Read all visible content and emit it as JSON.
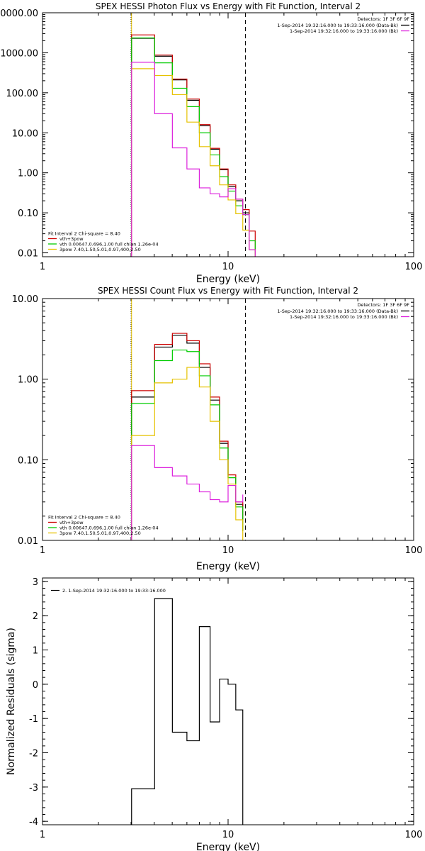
{
  "chart_data": [
    {
      "type": "line",
      "id": "photon",
      "title": "SPEX HESSI Photon Flux vs Energy with Fit Function, Interval 2",
      "xlabel": "Energy (keV)",
      "ylabel": "",
      "xscale": "log",
      "yscale": "log",
      "xlim": [
        1,
        100
      ],
      "ylim": [
        0.008,
        10000
      ],
      "x_ticks": [
        1,
        10,
        100
      ],
      "x_tick_labels": [
        "1",
        "10",
        "100"
      ],
      "y_ticks": [
        0.01,
        0.1,
        1,
        10,
        100,
        1000,
        10000
      ],
      "y_tick_labels": [
        "0.01",
        "0.10",
        "1.00",
        "10.00",
        "100.00",
        "1000.00",
        "10000.00"
      ],
      "vlines": [
        {
          "x": 3.0,
          "style": "dotted",
          "color": "#000000"
        },
        {
          "x": 3.02,
          "style": "solid",
          "color": "#e6c200"
        },
        {
          "x": 12.4,
          "style": "dashed",
          "color": "#000000"
        }
      ],
      "info_lines": [
        "Detectors: 1F 3F 6F 9F"
      ],
      "top_legend": [
        {
          "text": "1-Sep-2014 19:32:16.000 to 19:33:16.000 (Data-Bk)",
          "color": "#000000"
        },
        {
          "text": "1-Sep-2014 19:32:16.000 to 19:33:16.000 (Bk)",
          "color": "#dd22dd"
        }
      ],
      "fit_header": "Fit Interval 2   Chi-square = 8.40",
      "fit_legend": [
        {
          "text": "vth+3pow",
          "color": "#cc0000"
        },
        {
          "text": "vth 0.00647,0.696,1.00  full chian 1.26e-04",
          "color": "#00cc00"
        },
        {
          "text": "3pow 7.40,1.50,5.01,0.97,400,2.50",
          "color": "#e6c200"
        }
      ],
      "edges": [
        3.02,
        4.02,
        5.01,
        6.0,
        7.0,
        8.0,
        9.0,
        10.0,
        11.0,
        12.0,
        13.0,
        14.0
      ],
      "series": [
        {
          "name": "Data-Bk",
          "color": "#000000",
          "values": [
            2300,
            820,
            210,
            65,
            15,
            3.9,
            1.2,
            0.45,
            0.2,
            0.1,
            0.012
          ]
        },
        {
          "name": "vth+3pow",
          "color": "#cc0000",
          "values": [
            2800,
            880,
            220,
            70,
            16,
            4.1,
            1.25,
            0.5,
            0.22,
            0.12,
            0.035
          ]
        },
        {
          "name": "vth",
          "color": "#00cc00",
          "values": [
            2350,
            560,
            130,
            45,
            10,
            2.8,
            0.8,
            0.35,
            0.15,
            0.09,
            0.02
          ]
        },
        {
          "name": "3pow",
          "color": "#e6c200",
          "values": [
            400,
            270,
            90,
            18.5,
            4.5,
            1.5,
            0.5,
            0.21,
            0.095,
            0.037,
            0.012
          ]
        },
        {
          "name": "Bk",
          "color": "#dd22dd",
          "values": [
            580,
            30,
            4.2,
            1.25,
            0.42,
            0.3,
            0.25,
            0.4,
            0.22,
            0.09,
            0.012
          ]
        }
      ]
    },
    {
      "type": "line",
      "id": "count",
      "title": "SPEX HESSI Count Flux vs Energy with Fit Function, Interval 2",
      "xlabel": "Energy (keV)",
      "ylabel": "",
      "xscale": "log",
      "yscale": "log",
      "xlim": [
        1,
        100
      ],
      "ylim": [
        0.01,
        10
      ],
      "x_ticks": [
        1,
        10,
        100
      ],
      "x_tick_labels": [
        "1",
        "10",
        "100"
      ],
      "y_ticks": [
        0.01,
        0.1,
        1,
        10
      ],
      "y_tick_labels": [
        "0.01",
        "0.10",
        "1.00",
        "10.00"
      ],
      "vlines": [
        {
          "x": 3.0,
          "style": "dotted",
          "color": "#000000"
        },
        {
          "x": 3.02,
          "style": "solid",
          "color": "#e6c200"
        },
        {
          "x": 12.4,
          "style": "dashed",
          "color": "#000000"
        }
      ],
      "info_lines": [
        "Detectors: 1F 3F 6F 9F"
      ],
      "top_legend": [
        {
          "text": "1-Sep-2014 19:32:16.000 to 19:33:16.000 (Data-Bk)",
          "color": "#000000"
        },
        {
          "text": "1-Sep-2014 19:32:16.000 to 19:33:16.000 (Bk)",
          "color": "#dd22dd"
        }
      ],
      "fit_header": "Fit Interval 2   Chi-square = 8.40",
      "fit_legend": [
        {
          "text": "vth+3pow",
          "color": "#cc0000"
        },
        {
          "text": "vth 0.00647,0.696,1.00  full chian 1.26e-04",
          "color": "#00cc00"
        },
        {
          "text": "3pow 7.40,1.50,5.01,0.97,400,2.50",
          "color": "#e6c200"
        }
      ],
      "edges": [
        3.02,
        4.02,
        5.01,
        6.0,
        7.0,
        8.0,
        9.0,
        10.0,
        11.0,
        12.0
      ],
      "series": [
        {
          "name": "Data-Bk",
          "color": "#000000",
          "values": [
            0.6,
            2.5,
            3.5,
            2.8,
            1.4,
            0.55,
            0.16,
            0.06,
            0.028,
            0.013
          ]
        },
        {
          "name": "vth+3pow",
          "color": "#cc0000",
          "values": [
            0.72,
            2.7,
            3.7,
            3.0,
            1.55,
            0.6,
            0.17,
            0.065,
            0.03,
            0.018
          ]
        },
        {
          "name": "vth",
          "color": "#00cc00",
          "values": [
            0.5,
            1.7,
            2.3,
            2.2,
            1.1,
            0.48,
            0.14,
            0.06,
            0.026,
            0.013
          ]
        },
        {
          "name": "3pow",
          "color": "#e6c200",
          "values": [
            0.2,
            0.9,
            1.0,
            1.4,
            0.8,
            0.3,
            0.1,
            0.05,
            0.018,
            0.01
          ]
        },
        {
          "name": "Bk",
          "color": "#dd22dd",
          "values": [
            0.15,
            0.08,
            0.063,
            0.05,
            0.04,
            0.032,
            0.03,
            0.048,
            0.03,
            0.037
          ]
        }
      ]
    },
    {
      "type": "line",
      "id": "resid",
      "title": "",
      "xlabel": "Energy (keV)",
      "ylabel": "Normalized Residuals (sigma)",
      "xscale": "log",
      "yscale": "linear",
      "xlim": [
        1,
        100
      ],
      "ylim": [
        -4.1,
        3.1
      ],
      "x_ticks": [
        1,
        10,
        100
      ],
      "x_tick_labels": [
        "1",
        "10",
        "100"
      ],
      "y_ticks": [
        -4,
        -3,
        -2,
        -1,
        0,
        1,
        2,
        3
      ],
      "y_tick_labels": [
        "-4",
        "-3",
        "-2",
        "-1",
        "0",
        "1",
        "2",
        "3"
      ],
      "legend": [
        {
          "text": "2.  1-Sep-2014 19:32:16.000 to 19:33:16.000",
          "color": "#000000"
        }
      ],
      "edges": [
        3.02,
        4.02,
        5.01,
        6.0,
        7.0,
        8.0,
        9.0,
        10.0,
        11.0,
        12.0
      ],
      "series": [
        {
          "name": "",
          "color": "#000000",
          "values": [
            -3.05,
            2.5,
            -1.4,
            -1.65,
            1.68,
            -1.1,
            0.15,
            0.0,
            -0.75
          ]
        }
      ]
    }
  ]
}
